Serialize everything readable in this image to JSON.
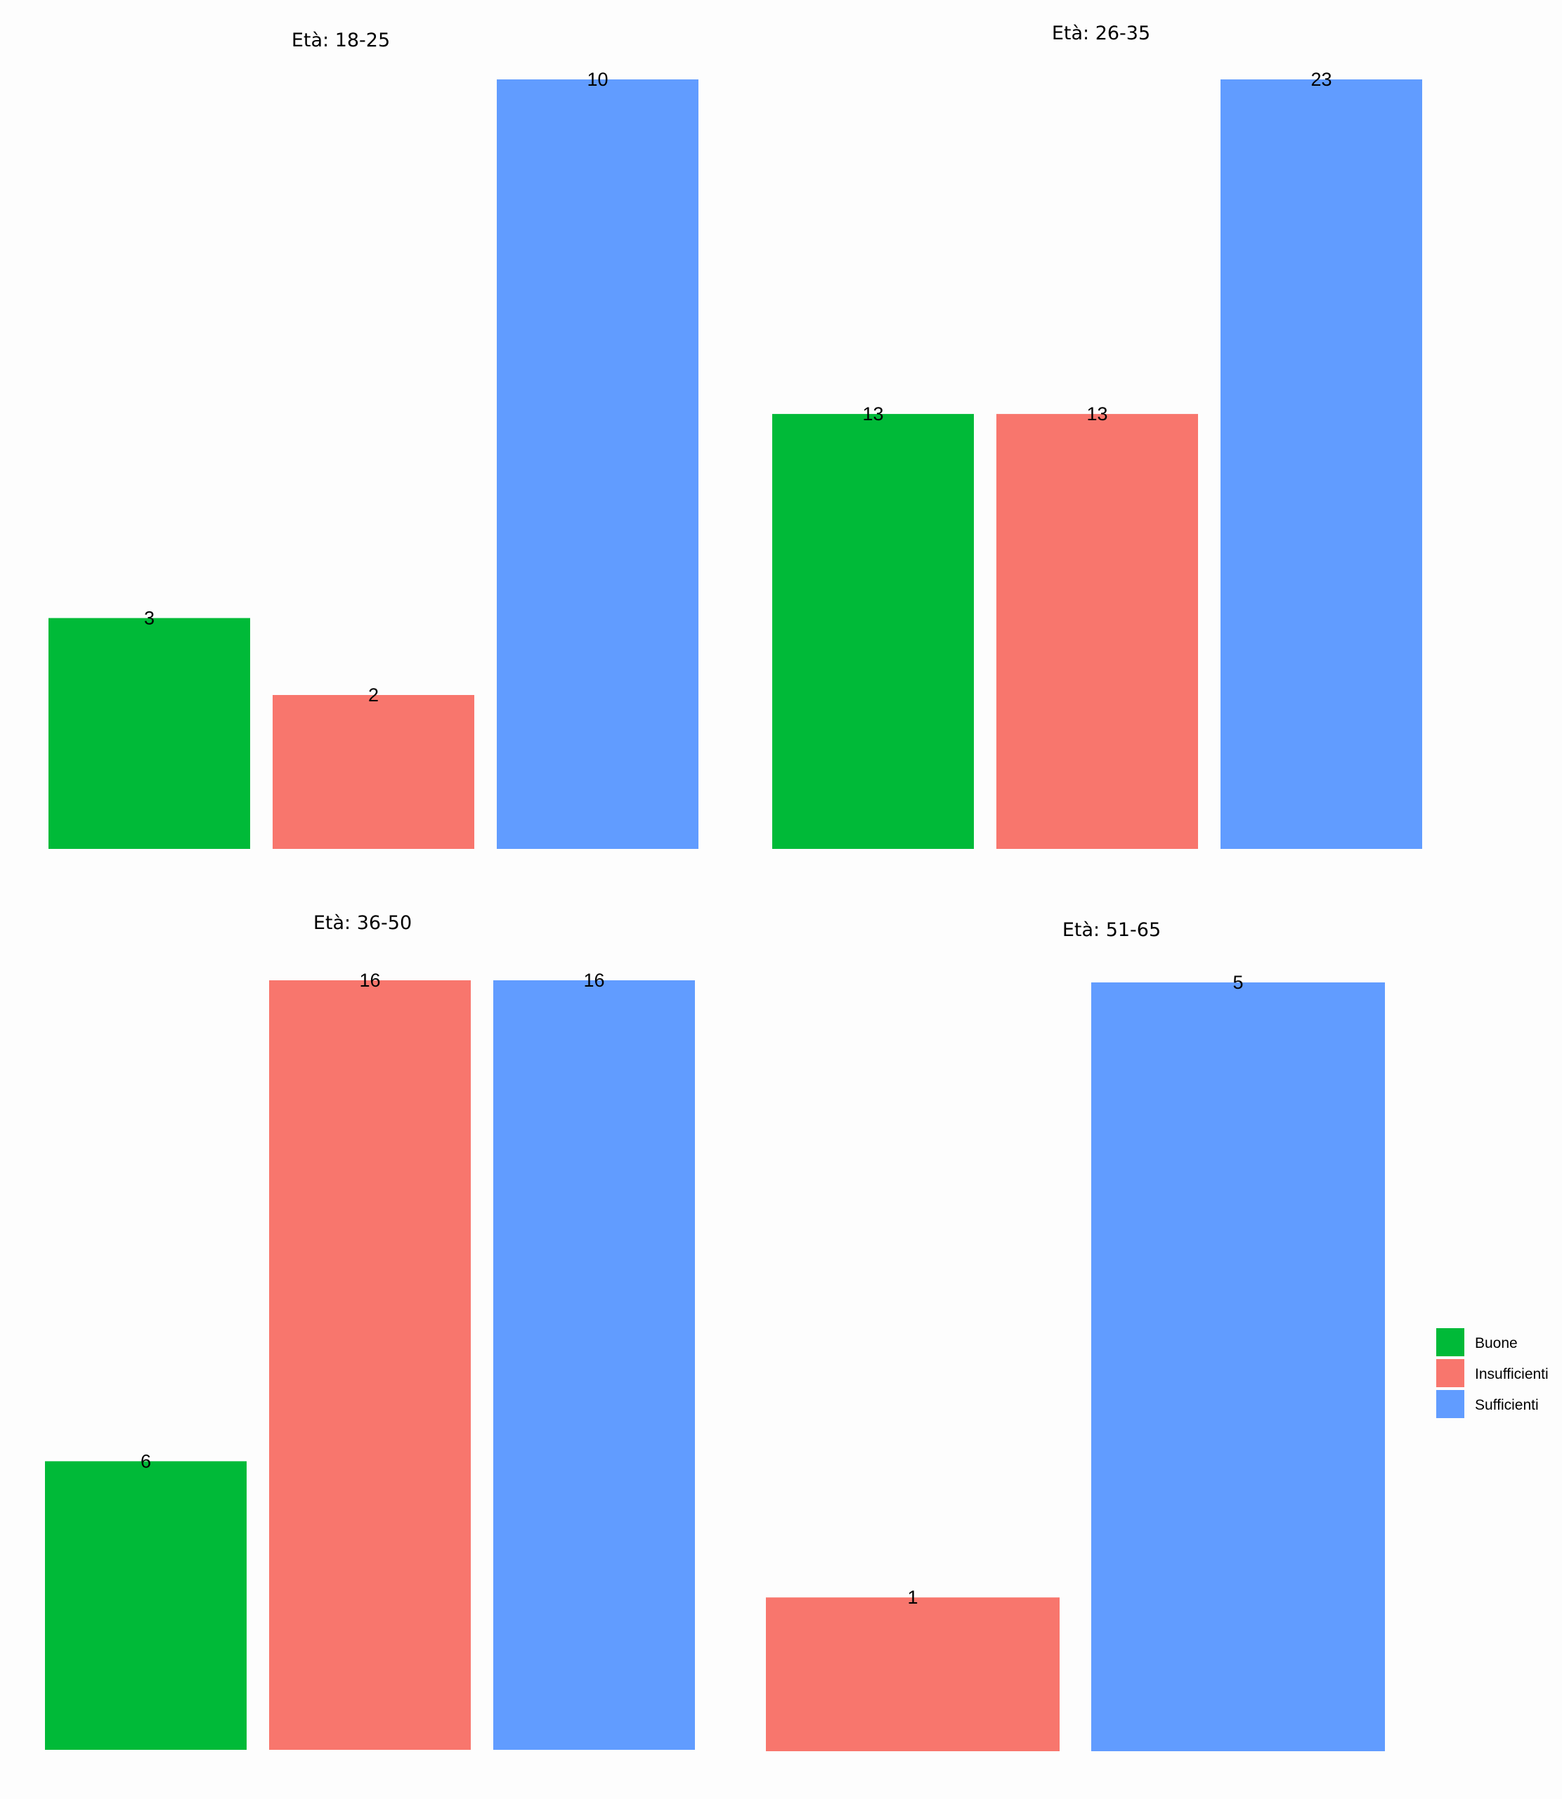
{
  "chart_data": {
    "type": "bar",
    "layout": "facets-2x2",
    "categories": [
      "Buone",
      "Insufficienti",
      "Sufficienti"
    ],
    "colors": {
      "Buone": "#00ba38",
      "Insufficienti": "#f8766d",
      "Sufficienti": "#619cff"
    },
    "panels": [
      {
        "title": "Età: 18-25",
        "values": [
          3,
          2,
          10
        ]
      },
      {
        "title": "Età: 26-35",
        "values": [
          13,
          13,
          23
        ]
      },
      {
        "title": "Età: 36-50",
        "values": [
          6,
          16,
          16
        ]
      },
      {
        "title": "Età: 51-65",
        "values": [
          null,
          1,
          5
        ]
      }
    ],
    "legend": {
      "position": "right",
      "entries": [
        "Buone",
        "Insufficienti",
        "Sufficienti"
      ]
    },
    "axes": "none",
    "grid": false,
    "scales": "free_y"
  }
}
